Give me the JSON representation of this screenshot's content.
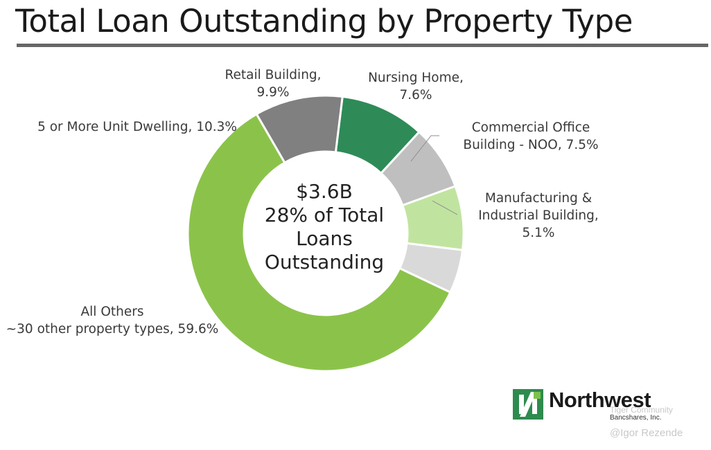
{
  "page": {
    "title": "Total Loan Outstanding by Property Type"
  },
  "chart_data": {
    "type": "pie",
    "variant": "donut",
    "center_text": [
      "$3.6B",
      "28% of Total",
      "Loans",
      "Outstanding"
    ],
    "slices": [
      {
        "label": "Retail Building, 9.9%",
        "value": 9.9,
        "color": "#2e8b57"
      },
      {
        "label": "Nursing Home, 7.6%",
        "value": 7.6,
        "color": "#bfbfbf"
      },
      {
        "label": "Commercial Office Building - NOO, 7.5%",
        "value": 7.5,
        "color": "#c0e4a0"
      },
      {
        "label": "Manufacturing & Industrial Building, 5.1%",
        "value": 5.1,
        "color": "#d9d9d9"
      },
      {
        "label": "All Others ~30 other property types, 59.6%",
        "value": 59.6,
        "color": "#8bc34a"
      },
      {
        "label": "5 or More Unit Dwelling, 10.3%",
        "value": 10.3,
        "color": "#808080"
      }
    ],
    "labels": {
      "retail": [
        "Retail Building,",
        "9.9%"
      ],
      "nursing": [
        "Nursing Home,",
        "7.6%"
      ],
      "office": [
        "Commercial Office",
        "Building - NOO, 7.5%"
      ],
      "manufacturing": [
        "Manufacturing &",
        "Industrial Building,",
        "5.1%"
      ],
      "others": [
        "All Others",
        "~30 other property types, 59.6%"
      ],
      "dwelling": [
        "5 or More Unit Dwelling, 10.3%"
      ]
    }
  },
  "logo": {
    "name": "Northwest",
    "sub": "Bancshares, Inc."
  },
  "watermarks": {
    "community": "Tiger Community",
    "author": "@Igor Rezende"
  }
}
